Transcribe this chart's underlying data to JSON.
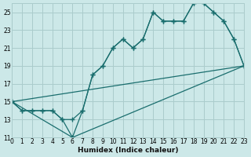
{
  "xlabel": "Humidex (Indice chaleur)",
  "bg_color": "#cce8e8",
  "grid_color": "#aacccc",
  "line_color": "#1a6e6e",
  "xlim": [
    0,
    23
  ],
  "ylim": [
    11,
    26
  ],
  "yticks": [
    11,
    13,
    15,
    17,
    19,
    21,
    23,
    25
  ],
  "xticks": [
    0,
    1,
    2,
    3,
    4,
    5,
    6,
    7,
    8,
    9,
    10,
    11,
    12,
    13,
    14,
    15,
    16,
    17,
    18,
    19,
    20,
    21,
    22,
    23
  ],
  "line1_x": [
    0,
    1,
    2,
    3,
    4,
    5,
    6,
    7,
    8,
    9,
    10,
    11,
    12,
    13,
    14,
    15,
    16,
    17,
    18,
    19,
    20,
    21,
    22,
    23
  ],
  "line1_y": [
    15,
    14,
    14,
    14,
    14,
    13,
    13,
    14,
    18,
    19,
    21,
    22,
    21,
    22,
    25,
    24,
    24,
    24,
    26,
    26,
    25,
    24,
    22,
    19
  ],
  "line2_x": [
    0,
    1,
    2,
    3,
    4,
    5,
    6,
    7,
    8,
    9,
    10,
    11,
    12,
    13,
    14,
    15,
    16,
    17,
    18,
    19,
    20,
    21,
    22,
    23
  ],
  "line2_y": [
    15,
    14,
    14,
    14,
    14,
    13,
    11,
    14,
    18,
    19,
    21,
    22,
    21,
    22,
    25,
    24,
    24,
    24,
    26,
    26,
    25,
    24,
    22,
    19
  ],
  "line3_x": [
    0,
    6,
    23
  ],
  "line3_y": [
    15,
    11,
    19
  ],
  "line4_x": [
    0,
    23
  ],
  "line4_y": [
    15,
    19
  ]
}
